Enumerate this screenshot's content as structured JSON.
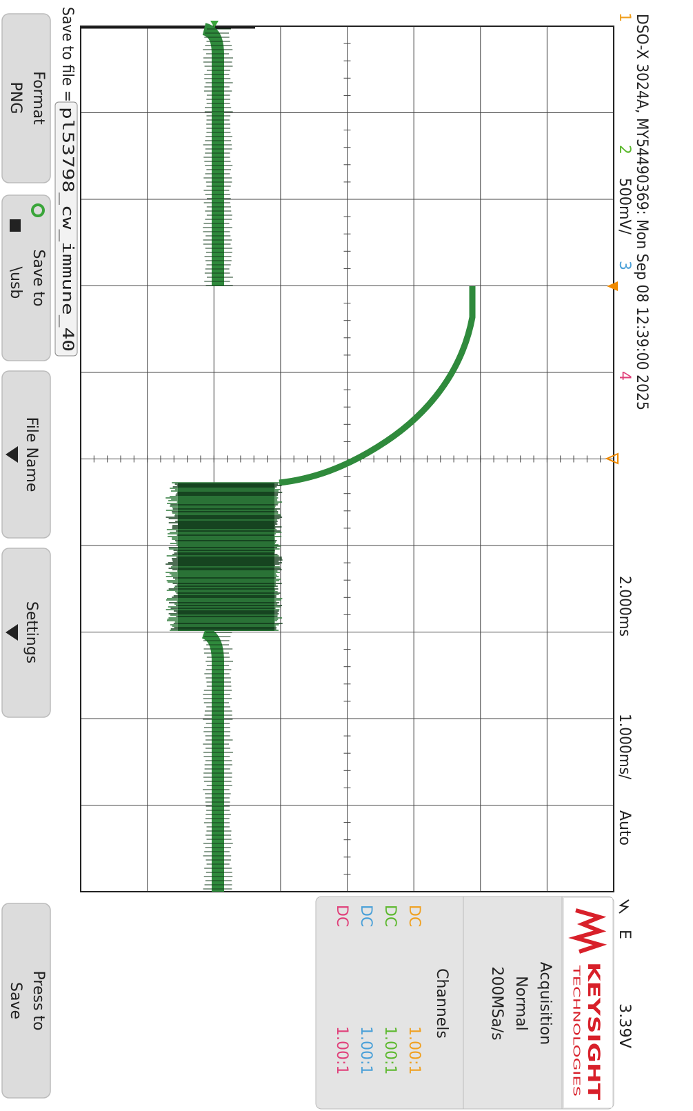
{
  "header": {
    "title": "DSO-X 3024A, MY54490369: Mon Sep 08 12:39:00 2025",
    "ch1": "1",
    "ch2": "2",
    "ch2_scale": "500mV/",
    "ch3": "3",
    "ch4": "4",
    "delay": "2.000ms",
    "timebase": "1.000ms/",
    "trigger_mode": "Auto",
    "trigger_edge": "E",
    "trigger_level": "3.39V"
  },
  "brand": {
    "name": "KEYSIGHT",
    "sub": "TECHNOLOGIES"
  },
  "acquisition": {
    "title": "Acquisition",
    "mode": "Normal",
    "rate": "200MSa/s"
  },
  "channels": {
    "title": "Channels",
    "rows": [
      {
        "coupling": "DC",
        "probe": "1.00:1"
      },
      {
        "coupling": "DC",
        "probe": "1.00:1"
      },
      {
        "coupling": "DC",
        "probe": "1.00:1"
      },
      {
        "coupling": "DC",
        "probe": "1.00:1"
      }
    ]
  },
  "save": {
    "label": "Save to file =",
    "filename": "pl53798_cw_immune_40"
  },
  "softkeys": [
    {
      "line1": "Format",
      "line2": "PNG"
    },
    {
      "line1": "Save to",
      "line2": "\\usb"
    },
    {
      "line1": "File Name"
    },
    {
      "line1": "Settings"
    },
    {
      "line1": "Press to",
      "line2": "Save"
    }
  ]
}
